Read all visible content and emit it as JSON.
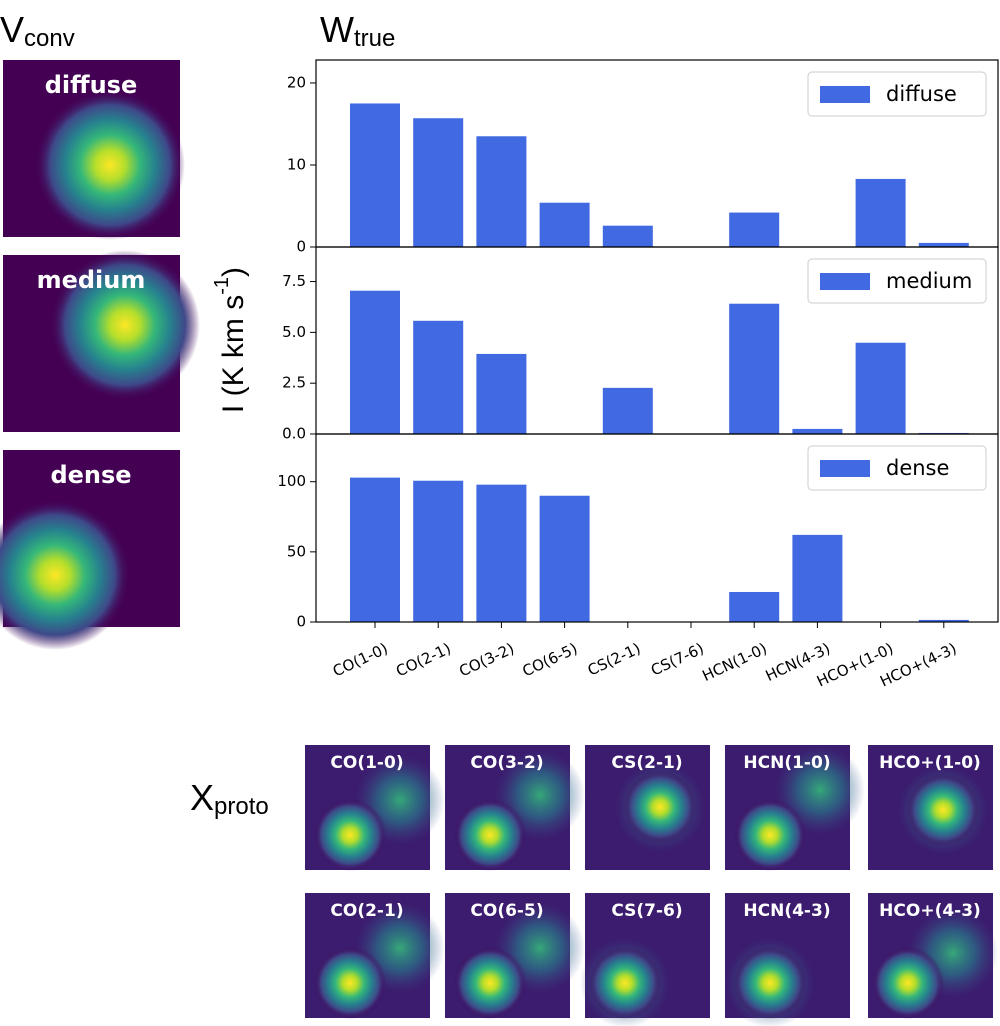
{
  "headings": [
    {
      "base": "V",
      "sub": "conv"
    },
    {
      "base": "W",
      "sub": "true"
    },
    {
      "base": "X",
      "sub": "proto"
    }
  ],
  "vconv_panels": [
    "diffuse",
    "medium",
    "dense"
  ],
  "xproto_panels": [
    "CO(1-0)",
    "CO(3-2)",
    "CS(2-1)",
    "HCN(1-0)",
    "HCO+(1-0)",
    "CO(2-1)",
    "CO(6-5)",
    "CS(7-6)",
    "HCN(4-3)",
    "HCO+(4-3)"
  ],
  "ylabel": {
    "text": "I (K km s",
    "sup": "-1",
    "end": ")"
  },
  "chart_data": [
    {
      "type": "bar",
      "series": [
        {
          "name": "diffuse",
          "color": "#4169e1",
          "values": [
            17.5,
            15.7,
            13.5,
            5.4,
            2.6,
            0,
            4.2,
            0,
            8.3,
            0.5
          ]
        }
      ],
      "ylim": [
        0,
        22.8
      ],
      "yticks": [
        0,
        10,
        20
      ],
      "legend": "upper right"
    },
    {
      "type": "bar",
      "series": [
        {
          "name": "medium",
          "color": "#4169e1",
          "values": [
            7.05,
            5.57,
            3.94,
            0,
            2.27,
            0,
            6.41,
            0.25,
            4.49,
            0.05
          ]
        }
      ],
      "ylim": [
        0,
        9.2
      ],
      "yticks": [
        {
          "value": 0,
          "label": "0.0"
        },
        2.5,
        {
          "value": 5,
          "label": "5.0"
        },
        7.5
      ],
      "legend": "upper right"
    },
    {
      "type": "bar",
      "categories": [
        "CO(1-0)",
        "CO(2-1)",
        "CO(3-2)",
        "CO(6-5)",
        "CS(2-1)",
        "CS(7-6)",
        "HCN(1-0)",
        "HCN(4-3)",
        "HCO+(1-0)",
        "HCO+(4-3)"
      ],
      "series": [
        {
          "name": "dense",
          "color": "#4169e1",
          "values": [
            102.9,
            100.7,
            97.9,
            90,
            0,
            0,
            21.4,
            62.1,
            0,
            1.5
          ]
        }
      ],
      "ylim": [
        0,
        134
      ],
      "yticks": [
        0,
        50,
        100
      ],
      "legend": "upper right"
    }
  ]
}
